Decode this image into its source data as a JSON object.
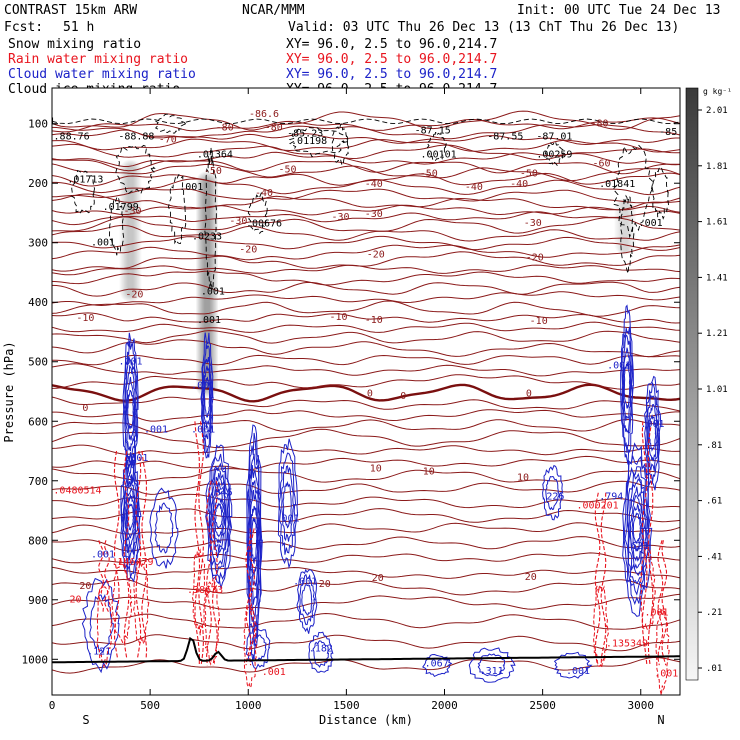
{
  "header": {
    "model": "CONTRAST 15km ARW",
    "org": "NCAR/MMM",
    "init": "Init: 00 UTC Tue 24 Dec 13",
    "fcst_label": "Fcst:",
    "fcst_value": "51 h",
    "valid": "Valid: 03 UTC Thu 26 Dec 13 (13 ChT Thu 26 Dec 13)"
  },
  "fields": [
    {
      "name": "Snow mixing ratio",
      "xy": "",
      "color": "#000000"
    },
    {
      "name": "Rain water mixing ratio",
      "xy": "XY=  96.0,  2.5 to  96.0,214.7",
      "color": "#e8141e"
    },
    {
      "name": "Cloud water mixing ratio",
      "xy": "XY=  96.0,  2.5 to  96.0,214.7",
      "color": "#1c22c8"
    },
    {
      "name": "Cloud ice mixing ratio",
      "xy": "XY=  96.0,  2.5 to  96.0,214.7",
      "color": "#000000"
    }
  ],
  "snow_xy": "XY=  96.0,  2.5 to  96.0,214.7",
  "colorbar": {
    "units": "g kg⁻¹",
    "ticks": [
      "2.01",
      "1.81",
      "1.61",
      "1.41",
      "1.21",
      "1.01",
      ".81",
      ".61",
      ".41",
      ".21",
      ".01"
    ]
  },
  "chart_data": {
    "type": "heatmap",
    "xlabel": "Distance (km)",
    "ylabel": "Pressure (hPa)",
    "xlim": [
      0,
      3200
    ],
    "ylim": [
      1060,
      40
    ],
    "x_ticks": [
      "0",
      "500",
      "1000",
      "1500",
      "2000",
      "2500",
      "3000"
    ],
    "y_ticks": [
      "100",
      "200",
      "300",
      "400",
      "500",
      "600",
      "700",
      "800",
      "900",
      "1000"
    ],
    "x_end_labels": [
      "S",
      "N"
    ],
    "colors": {
      "temperature": "#8b1a1a",
      "zero_isotherm": "#7a0f0f",
      "rain": "#e8141e",
      "cloud": "#1c22c8",
      "ice": "#000000",
      "terrain": "#000000"
    },
    "temperature_labels": [
      {
        "x": 410,
        "p": 245,
        "text": "-30"
      },
      {
        "x": 950,
        "p": 262,
        "text": "-30"
      },
      {
        "x": 1470,
        "p": 255,
        "text": "-30"
      },
      {
        "x": 1640,
        "p": 250,
        "text": "-30"
      },
      {
        "x": 2450,
        "p": 265,
        "text": "-30"
      },
      {
        "x": 1080,
        "p": 215,
        "text": "-40"
      },
      {
        "x": 1640,
        "p": 200,
        "text": "-40"
      },
      {
        "x": 2150,
        "p": 205,
        "text": "-40"
      },
      {
        "x": 2380,
        "p": 200,
        "text": "-40"
      },
      {
        "x": 1200,
        "p": 175,
        "text": "-50"
      },
      {
        "x": 1920,
        "p": 182,
        "text": "-50"
      },
      {
        "x": 2430,
        "p": 182,
        "text": "-50"
      },
      {
        "x": 820,
        "p": 178,
        "text": "-50"
      },
      {
        "x": 590,
        "p": 125,
        "text": "-70"
      },
      {
        "x": 880,
        "p": 105,
        "text": "-80"
      },
      {
        "x": 1130,
        "p": 105,
        "text": "-80"
      },
      {
        "x": 2790,
        "p": 98,
        "text": "-80"
      },
      {
        "x": 2800,
        "p": 165,
        "text": "-60"
      },
      {
        "x": 1080,
        "p": 82,
        "text": "-86.6"
      },
      {
        "x": 1000,
        "p": 310,
        "text": "-20"
      },
      {
        "x": 1650,
        "p": 318,
        "text": "-20"
      },
      {
        "x": 2460,
        "p": 323,
        "text": "-20"
      },
      {
        "x": 420,
        "p": 385,
        "text": "-20"
      },
      {
        "x": 170,
        "p": 425,
        "text": "-10"
      },
      {
        "x": 1460,
        "p": 423,
        "text": "-10"
      },
      {
        "x": 1640,
        "p": 428,
        "text": "-10"
      },
      {
        "x": 2480,
        "p": 430,
        "text": "-10"
      },
      {
        "x": 170,
        "p": 576,
        "text": "0"
      },
      {
        "x": 1620,
        "p": 552,
        "text": "0"
      },
      {
        "x": 1790,
        "p": 556,
        "text": "0"
      },
      {
        "x": 2430,
        "p": 552,
        "text": "0"
      },
      {
        "x": 1650,
        "p": 678,
        "text": "10"
      },
      {
        "x": 1920,
        "p": 683,
        "text": "10"
      },
      {
        "x": 2400,
        "p": 693,
        "text": "10"
      },
      {
        "x": 1660,
        "p": 862,
        "text": "20"
      },
      {
        "x": 2440,
        "p": 860,
        "text": "20"
      },
      {
        "x": 1390,
        "p": 872,
        "text": "20"
      },
      {
        "x": 170,
        "p": 875,
        "text": "20"
      }
    ],
    "extrema_labels": [
      {
        "x": 10,
        "p": 95,
        "text": "L",
        "color": "#000000"
      },
      {
        "x": 100,
        "p": 120,
        "text": ".88.76",
        "color": "#000000"
      },
      {
        "x": 430,
        "p": 120,
        "text": "-88.88",
        "color": "#000000"
      },
      {
        "x": 1290,
        "p": 115,
        "text": "-85.23",
        "color": "#000000"
      },
      {
        "x": 1940,
        "p": 110,
        "text": "-87.15",
        "color": "#000000"
      },
      {
        "x": 2310,
        "p": 120,
        "text": "-87.55",
        "color": "#000000"
      },
      {
        "x": 2560,
        "p": 120,
        "text": "-87.01",
        "color": "#000000"
      },
      {
        "x": 3140,
        "p": 112,
        "text": "-85",
        "color": "#000000"
      },
      {
        "x": 830,
        "p": 150,
        "text": ".01364",
        "color": "#000000"
      },
      {
        "x": 1310,
        "p": 127,
        "text": ".01198",
        "color": "#000000"
      },
      {
        "x": 1970,
        "p": 150,
        "text": ".00101",
        "color": "#000000"
      },
      {
        "x": 2560,
        "p": 150,
        "text": ".00259",
        "color": "#000000"
      },
      {
        "x": 170,
        "p": 192,
        "text": ".01713",
        "color": "#000000"
      },
      {
        "x": 350,
        "p": 238,
        "text": ".01799",
        "color": "#000000"
      },
      {
        "x": 2880,
        "p": 200,
        "text": ".01841",
        "color": "#000000"
      },
      {
        "x": 1080,
        "p": 266,
        "text": ".00676",
        "color": "#000000"
      },
      {
        "x": 790,
        "p": 288,
        "text": ".0233",
        "color": "#000000"
      },
      {
        "x": 260,
        "p": 298,
        "text": ".001",
        "color": "#000000"
      },
      {
        "x": 710,
        "p": 205,
        "text": ".001",
        "color": "#000000"
      },
      {
        "x": 3050,
        "p": 265,
        "text": ".001",
        "color": "#000000"
      },
      {
        "x": 820,
        "p": 380,
        "text": ".001",
        "color": "#000000"
      },
      {
        "x": 800,
        "p": 428,
        "text": ".001",
        "color": "#000000"
      },
      {
        "x": 400,
        "p": 498,
        "text": ".001",
        "color": "#1c22c8"
      },
      {
        "x": 770,
        "p": 538,
        "text": ".001",
        "color": "#1c22c8"
      },
      {
        "x": 530,
        "p": 612,
        "text": ".001",
        "color": "#1c22c8"
      },
      {
        "x": 770,
        "p": 612,
        "text": ".001",
        "color": "#1c22c8"
      },
      {
        "x": 430,
        "p": 660,
        "text": ".801",
        "color": "#1c22c8"
      },
      {
        "x": 860,
        "p": 718,
        "text": ".845",
        "color": "#1c22c8"
      },
      {
        "x": 1200,
        "p": 762,
        "text": ".001",
        "color": "#1c22c8"
      },
      {
        "x": 2890,
        "p": 505,
        "text": ".001",
        "color": "#1c22c8"
      },
      {
        "x": 3060,
        "p": 603,
        "text": ".001",
        "color": "#1c22c8"
      },
      {
        "x": 2550,
        "p": 725,
        "text": ".226",
        "color": "#1c22c8"
      },
      {
        "x": 2850,
        "p": 725,
        "text": ".794",
        "color": "#1c22c8"
      },
      {
        "x": 2980,
        "p": 808,
        "text": ".621",
        "color": "#1c22c8"
      },
      {
        "x": 260,
        "p": 822,
        "text": ".001",
        "color": "#1c22c8"
      },
      {
        "x": 1290,
        "p": 868,
        "text": ".001",
        "color": "#1c22c8"
      },
      {
        "x": 240,
        "p": 985,
        "text": ".121",
        "color": "#1c22c8"
      },
      {
        "x": 1370,
        "p": 980,
        "text": ".182",
        "color": "#1c22c8"
      },
      {
        "x": 1960,
        "p": 1005,
        "text": ".067",
        "color": "#1c22c8"
      },
      {
        "x": 2240,
        "p": 1018,
        "text": ".311",
        "color": "#1c22c8"
      },
      {
        "x": 2680,
        "p": 1018,
        "text": ".001",
        "color": "#1c22c8"
      },
      {
        "x": 130,
        "p": 715,
        "text": ".0480514",
        "color": "#e8141e"
      },
      {
        "x": 410,
        "p": 835,
        "text": ".146479",
        "color": "#e8141e"
      },
      {
        "x": 780,
        "p": 882,
        "text": ".38633",
        "color": "#e8141e"
      },
      {
        "x": 2780,
        "p": 740,
        "text": ".000201",
        "color": "#e8141e"
      },
      {
        "x": 2930,
        "p": 972,
        "text": ".135349",
        "color": "#e8141e"
      },
      {
        "x": 3080,
        "p": 920,
        "text": ".001",
        "color": "#e8141e"
      },
      {
        "x": 1130,
        "p": 1020,
        "text": ".001",
        "color": "#e8141e"
      },
      {
        "x": 3130,
        "p": 1022,
        "text": ".001",
        "color": "#e8141e"
      },
      {
        "x": 120,
        "p": 898,
        "text": "20",
        "color": "#e8141e"
      }
    ],
    "snow_columns": [
      {
        "x": 400,
        "p_top": 160,
        "p_bottom": 400,
        "peak": 0.65
      },
      {
        "x": 790,
        "p_top": 180,
        "p_bottom": 560,
        "peak": 1.2
      },
      {
        "x": 2920,
        "p_top": 225,
        "p_bottom": 320,
        "peak": 0.4
      }
    ],
    "terrain_peaks": [
      {
        "x": 710,
        "height": 0.04
      },
      {
        "x": 845,
        "height": 0.015
      }
    ]
  }
}
